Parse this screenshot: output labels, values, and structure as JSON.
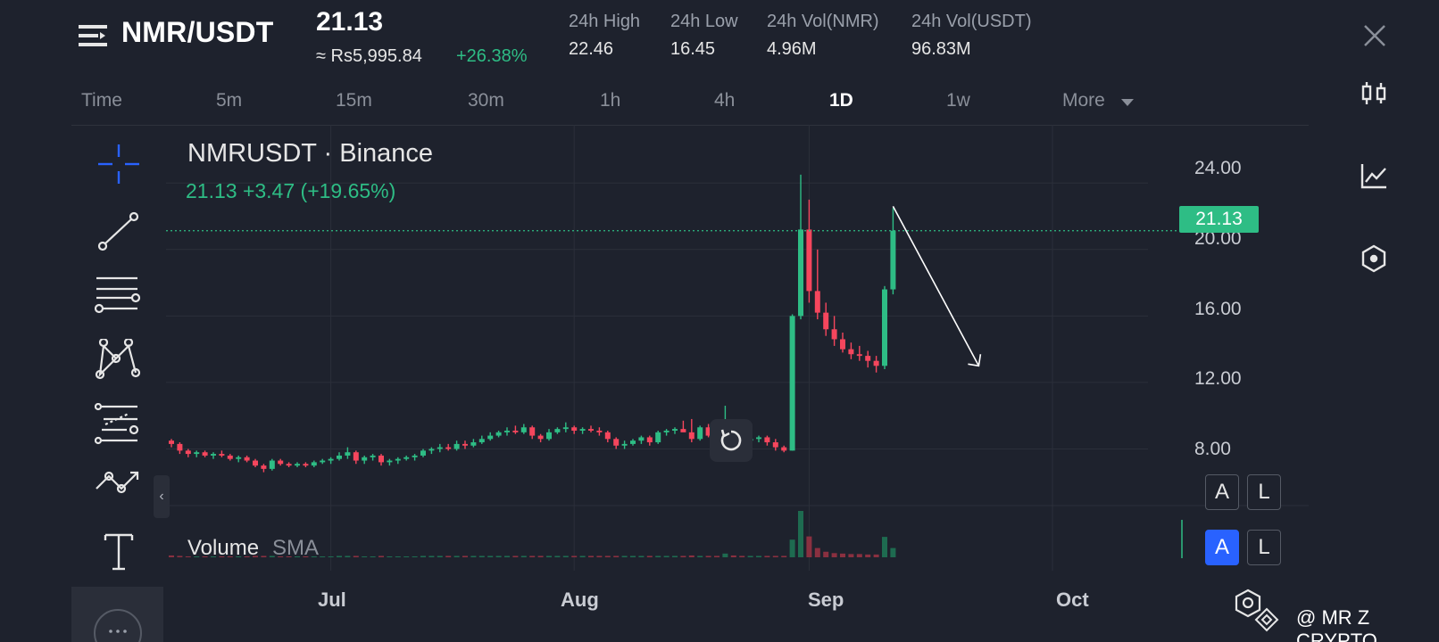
{
  "header": {
    "pair": "NMR/USDT",
    "price": "21.13",
    "fiat_price": "≈ Rs5,995.84",
    "change_pct": "+26.38%",
    "stats": [
      {
        "label": "24h High",
        "value": "22.46"
      },
      {
        "label": "24h Low",
        "value": "16.45"
      },
      {
        "label": "24h Vol(NMR)",
        "value": "4.96M"
      },
      {
        "label": "24h Vol(USDT)",
        "value": "96.83M"
      }
    ]
  },
  "timeframes": {
    "items": [
      "Time",
      "5m",
      "15m",
      "30m",
      "1h",
      "4h",
      "1D",
      "1w"
    ],
    "active": "1D",
    "more_label": "More"
  },
  "chart": {
    "symbol_label": "NMRUSDT · Binance",
    "quote_label": "21.13  +3.47 (+19.65%)",
    "last_price_tag": "21.13",
    "volume_label": "Volume",
    "volume_sma_label": "SMA",
    "scale_toggles": [
      {
        "auto": "A",
        "log": "L"
      },
      {
        "auto": "A",
        "log": "L"
      }
    ]
  },
  "chart_data": {
    "type": "candlestick",
    "title": "NMRUSDT · Binance",
    "x_tick_labels": [
      "Jul",
      "Aug",
      "Sep",
      "Oct"
    ],
    "y_tick_labels": [
      "24.00",
      "20.00",
      "16.00",
      "12.00",
      "8.00"
    ],
    "ylim": [
      4.7,
      27.5
    ],
    "grid": true,
    "last_price": 21.13,
    "candles_ohlc": [
      [
        8.5,
        8.6,
        8.1,
        8.3
      ],
      [
        8.3,
        8.4,
        7.7,
        7.9
      ],
      [
        7.9,
        8.0,
        7.5,
        7.7
      ],
      [
        7.7,
        7.9,
        7.5,
        7.8
      ],
      [
        7.8,
        7.9,
        7.5,
        7.6
      ],
      [
        7.6,
        7.8,
        7.4,
        7.7
      ],
      [
        7.7,
        7.9,
        7.5,
        7.6
      ],
      [
        7.6,
        7.7,
        7.3,
        7.4
      ],
      [
        7.4,
        7.6,
        7.2,
        7.5
      ],
      [
        7.5,
        7.6,
        7.2,
        7.3
      ],
      [
        7.3,
        7.4,
        6.9,
        7.0
      ],
      [
        7.0,
        7.1,
        6.6,
        6.8
      ],
      [
        6.8,
        7.4,
        6.7,
        7.3
      ],
      [
        7.3,
        7.4,
        7.0,
        7.1
      ],
      [
        7.1,
        7.2,
        6.9,
        7.0
      ],
      [
        7.0,
        7.2,
        6.9,
        7.1
      ],
      [
        7.1,
        7.2,
        6.9,
        7.0
      ],
      [
        7.0,
        7.3,
        6.9,
        7.2
      ],
      [
        7.2,
        7.4,
        7.1,
        7.3
      ],
      [
        7.3,
        7.5,
        7.1,
        7.4
      ],
      [
        7.4,
        7.8,
        7.3,
        7.6
      ],
      [
        7.6,
        8.1,
        7.4,
        7.8
      ],
      [
        7.8,
        7.9,
        7.1,
        7.3
      ],
      [
        7.3,
        7.6,
        7.1,
        7.5
      ],
      [
        7.5,
        7.7,
        7.3,
        7.6
      ],
      [
        7.6,
        7.7,
        7.0,
        7.2
      ],
      [
        7.2,
        7.4,
        7.0,
        7.3
      ],
      [
        7.3,
        7.5,
        7.1,
        7.4
      ],
      [
        7.4,
        7.6,
        7.3,
        7.5
      ],
      [
        7.5,
        7.7,
        7.3,
        7.6
      ],
      [
        7.6,
        8.0,
        7.5,
        7.9
      ],
      [
        7.9,
        8.1,
        7.7,
        8.0
      ],
      [
        8.0,
        8.3,
        7.8,
        8.1
      ],
      [
        8.1,
        8.3,
        7.9,
        8.0
      ],
      [
        8.0,
        8.5,
        7.9,
        8.3
      ],
      [
        8.3,
        8.5,
        8.0,
        8.2
      ],
      [
        8.2,
        8.6,
        8.1,
        8.4
      ],
      [
        8.4,
        8.8,
        8.3,
        8.6
      ],
      [
        8.6,
        9.0,
        8.5,
        8.8
      ],
      [
        8.8,
        9.1,
        8.7,
        9.0
      ],
      [
        9.0,
        9.3,
        8.8,
        9.1
      ],
      [
        9.1,
        9.4,
        8.9,
        9.0
      ],
      [
        9.0,
        9.5,
        8.9,
        9.3
      ],
      [
        9.3,
        9.4,
        8.6,
        8.8
      ],
      [
        8.8,
        8.9,
        8.4,
        8.6
      ],
      [
        8.6,
        9.2,
        8.5,
        9.0
      ],
      [
        9.0,
        9.3,
        8.9,
        9.2
      ],
      [
        9.2,
        9.6,
        9.0,
        9.3
      ],
      [
        9.3,
        9.4,
        8.9,
        9.1
      ],
      [
        9.1,
        9.3,
        8.9,
        9.2
      ],
      [
        9.2,
        9.4,
        9.0,
        9.1
      ],
      [
        9.1,
        9.3,
        8.8,
        9.0
      ],
      [
        9.0,
        9.1,
        8.4,
        8.6
      ],
      [
        8.6,
        8.7,
        8.0,
        8.2
      ],
      [
        8.2,
        8.5,
        8.0,
        8.3
      ],
      [
        8.3,
        8.6,
        8.2,
        8.5
      ],
      [
        8.5,
        8.8,
        8.3,
        8.7
      ],
      [
        8.7,
        8.8,
        8.2,
        8.4
      ],
      [
        8.4,
        9.1,
        8.3,
        9.0
      ],
      [
        9.0,
        9.2,
        8.8,
        9.1
      ],
      [
        9.1,
        9.3,
        8.9,
        9.2
      ],
      [
        9.2,
        9.7,
        9.1,
        9.0
      ],
      [
        9.0,
        9.8,
        8.4,
        8.6
      ],
      [
        8.6,
        9.4,
        8.5,
        9.3
      ],
      [
        9.3,
        9.5,
        8.7,
        8.8
      ],
      [
        8.8,
        8.9,
        8.3,
        8.5
      ],
      [
        8.5,
        10.6,
        8.4,
        9.0
      ],
      [
        9.0,
        9.2,
        8.6,
        8.8
      ],
      [
        8.8,
        9.0,
        8.3,
        8.5
      ],
      [
        8.5,
        8.8,
        8.2,
        8.6
      ],
      [
        8.6,
        8.8,
        8.4,
        8.7
      ],
      [
        8.7,
        8.8,
        8.2,
        8.4
      ],
      [
        8.4,
        8.6,
        7.9,
        8.1
      ],
      [
        8.1,
        8.2,
        7.8,
        7.9
      ],
      [
        7.9,
        16.1,
        7.9,
        16.0
      ],
      [
        16.0,
        24.5,
        15.8,
        21.2
      ],
      [
        21.2,
        23.0,
        16.8,
        17.5
      ],
      [
        17.5,
        20.0,
        15.8,
        16.2
      ],
      [
        16.2,
        16.8,
        14.8,
        15.2
      ],
      [
        15.2,
        16.0,
        14.2,
        14.6
      ],
      [
        14.6,
        15.0,
        13.8,
        14.0
      ],
      [
        14.0,
        14.4,
        13.4,
        13.7
      ],
      [
        13.7,
        14.2,
        13.3,
        13.6
      ],
      [
        13.6,
        13.9,
        12.9,
        13.3
      ],
      [
        13.3,
        13.6,
        12.6,
        13.0
      ],
      [
        13.0,
        17.8,
        12.8,
        17.6
      ],
      [
        17.6,
        22.5,
        17.3,
        21.13
      ]
    ],
    "volume": [
      0.4,
      0.3,
      0.2,
      0.2,
      0.2,
      0.2,
      0.2,
      0.2,
      0.2,
      0.2,
      0.3,
      0.3,
      0.3,
      0.2,
      0.2,
      0.2,
      0.2,
      0.2,
      0.2,
      0.2,
      0.3,
      0.3,
      0.3,
      0.2,
      0.2,
      0.3,
      0.2,
      0.2,
      0.2,
      0.2,
      0.3,
      0.3,
      0.3,
      0.3,
      0.3,
      0.3,
      0.3,
      0.3,
      0.3,
      0.3,
      0.3,
      0.3,
      0.3,
      0.3,
      0.3,
      0.3,
      0.3,
      0.3,
      0.3,
      0.3,
      0.3,
      0.3,
      0.3,
      0.3,
      0.3,
      0.3,
      0.3,
      0.3,
      0.3,
      0.3,
      0.3,
      0.3,
      0.4,
      0.3,
      0.3,
      0.3,
      0.8,
      0.4,
      0.3,
      0.3,
      0.3,
      0.3,
      0.3,
      0.3,
      3.8,
      10.0,
      4.5,
      2.0,
      1.2,
      0.9,
      0.8,
      0.7,
      0.7,
      0.6,
      0.6,
      4.4,
      2.0
    ]
  }
}
